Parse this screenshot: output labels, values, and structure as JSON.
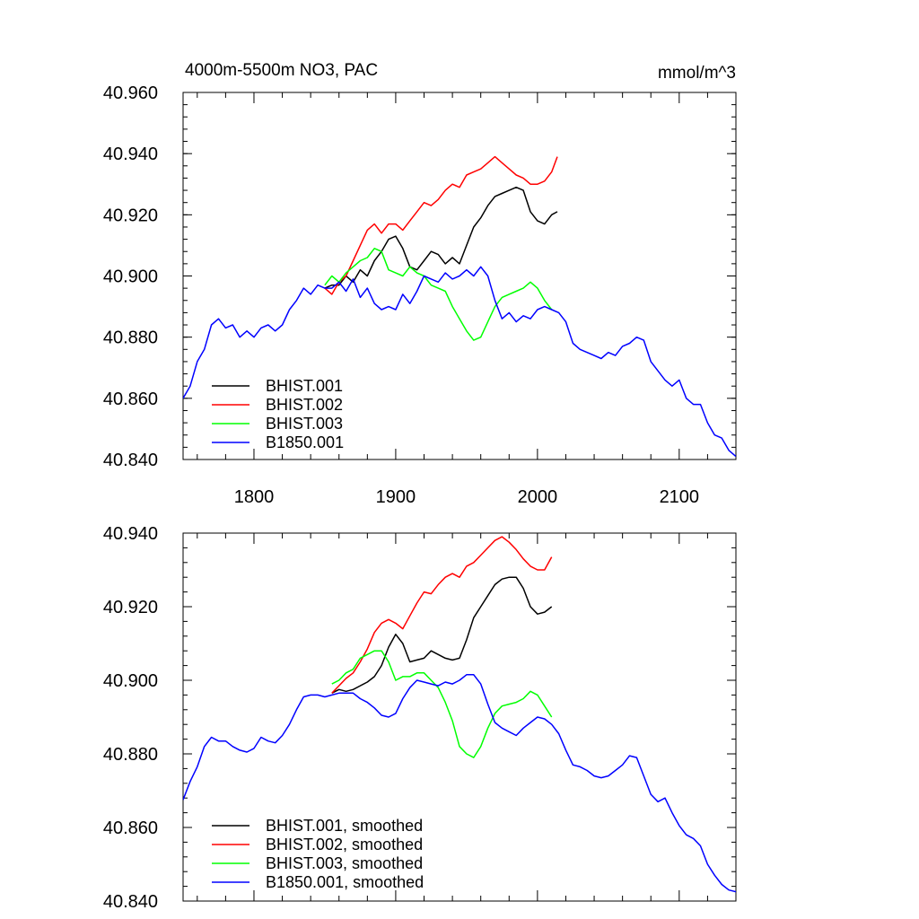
{
  "chart_data": [
    {
      "type": "line",
      "title": "4000m-5500m NO3, PAC",
      "units": "mmol/m^3",
      "xlim": [
        1750,
        2140
      ],
      "ylim": [
        0.84,
        0.96
      ],
      "y_offset": 40,
      "yticks": [
        "40.840",
        "40.860",
        "40.880",
        "40.900",
        "40.920",
        "40.940",
        "40.960"
      ],
      "xticks": [
        "1800",
        "1900",
        "2000",
        "2100"
      ],
      "legend_position": "bottom-left",
      "grid": false,
      "series": [
        {
          "name": "BHIST.001",
          "color": "#000000",
          "x": [
            1850,
            1855,
            1860,
            1865,
            1870,
            1875,
            1880,
            1885,
            1890,
            1895,
            1900,
            1905,
            1910,
            1915,
            1920,
            1925,
            1930,
            1935,
            1940,
            1945,
            1950,
            1955,
            1960,
            1965,
            1970,
            1975,
            1980,
            1985,
            1990,
            1995,
            2000,
            2005,
            2010,
            2014
          ],
          "y": [
            0.896,
            0.897,
            0.897,
            0.9,
            0.898,
            0.902,
            0.9,
            0.905,
            0.908,
            0.912,
            0.913,
            0.909,
            0.903,
            0.902,
            0.905,
            0.908,
            0.907,
            0.904,
            0.906,
            0.904,
            0.91,
            0.916,
            0.919,
            0.923,
            0.926,
            0.927,
            0.928,
            0.929,
            0.928,
            0.921,
            0.918,
            0.917,
            0.92,
            0.921
          ]
        },
        {
          "name": "BHIST.002",
          "color": "#ff0000",
          "x": [
            1850,
            1855,
            1860,
            1865,
            1870,
            1875,
            1880,
            1885,
            1890,
            1895,
            1900,
            1905,
            1910,
            1915,
            1920,
            1925,
            1930,
            1935,
            1940,
            1945,
            1950,
            1955,
            1960,
            1965,
            1970,
            1975,
            1980,
            1985,
            1990,
            1995,
            2000,
            2005,
            2010,
            2014
          ],
          "y": [
            0.896,
            0.894,
            0.898,
            0.9,
            0.905,
            0.91,
            0.915,
            0.917,
            0.914,
            0.917,
            0.917,
            0.915,
            0.918,
            0.921,
            0.924,
            0.923,
            0.925,
            0.928,
            0.93,
            0.929,
            0.933,
            0.934,
            0.935,
            0.937,
            0.939,
            0.937,
            0.935,
            0.933,
            0.932,
            0.93,
            0.93,
            0.931,
            0.934,
            0.939
          ]
        },
        {
          "name": "BHIST.003",
          "color": "#00ff00",
          "x": [
            1850,
            1855,
            1860,
            1865,
            1870,
            1875,
            1880,
            1885,
            1890,
            1895,
            1900,
            1905,
            1910,
            1915,
            1920,
            1925,
            1930,
            1935,
            1940,
            1945,
            1950,
            1955,
            1960,
            1965,
            1970,
            1975,
            1980,
            1985,
            1990,
            1995,
            2000,
            2005,
            2010
          ],
          "y": [
            0.897,
            0.9,
            0.898,
            0.901,
            0.903,
            0.905,
            0.906,
            0.909,
            0.908,
            0.902,
            0.901,
            0.9,
            0.903,
            0.901,
            0.9,
            0.897,
            0.896,
            0.895,
            0.89,
            0.886,
            0.882,
            0.879,
            0.88,
            0.885,
            0.89,
            0.893,
            0.894,
            0.895,
            0.896,
            0.898,
            0.896,
            0.892,
            0.889
          ]
        },
        {
          "name": "B1850.001",
          "color": "#0000ff",
          "x": [
            1750,
            1755,
            1760,
            1765,
            1770,
            1775,
            1780,
            1785,
            1790,
            1795,
            1800,
            1805,
            1810,
            1815,
            1820,
            1825,
            1830,
            1835,
            1840,
            1845,
            1850,
            1855,
            1860,
            1865,
            1870,
            1875,
            1880,
            1885,
            1890,
            1895,
            1900,
            1905,
            1910,
            1915,
            1920,
            1925,
            1930,
            1935,
            1940,
            1945,
            1950,
            1955,
            1960,
            1965,
            1970,
            1975,
            1980,
            1985,
            1990,
            1995,
            2000,
            2005,
            2010,
            2015,
            2020,
            2025,
            2030,
            2035,
            2040,
            2045,
            2050,
            2055,
            2060,
            2065,
            2070,
            2075,
            2080,
            2085,
            2090,
            2095,
            2100,
            2105,
            2110,
            2115,
            2120,
            2125,
            2130,
            2135,
            2140
          ],
          "y": [
            0.86,
            0.864,
            0.872,
            0.876,
            0.884,
            0.886,
            0.883,
            0.884,
            0.88,
            0.882,
            0.88,
            0.883,
            0.884,
            0.882,
            0.884,
            0.889,
            0.892,
            0.896,
            0.894,
            0.897,
            0.896,
            0.896,
            0.898,
            0.895,
            0.899,
            0.893,
            0.896,
            0.891,
            0.889,
            0.89,
            0.889,
            0.894,
            0.891,
            0.895,
            0.9,
            0.899,
            0.898,
            0.901,
            0.899,
            0.9,
            0.902,
            0.9,
            0.903,
            0.9,
            0.892,
            0.886,
            0.888,
            0.885,
            0.887,
            0.886,
            0.889,
            0.89,
            0.889,
            0.888,
            0.885,
            0.878,
            0.876,
            0.875,
            0.874,
            0.873,
            0.875,
            0.874,
            0.877,
            0.878,
            0.88,
            0.879,
            0.872,
            0.869,
            0.866,
            0.864,
            0.866,
            0.86,
            0.858,
            0.858,
            0.852,
            0.848,
            0.847,
            0.843,
            0.841
          ]
        }
      ]
    },
    {
      "type": "line",
      "xlim": [
        1750,
        2140
      ],
      "ylim": [
        0.84,
        0.94
      ],
      "y_offset": 40,
      "yticks": [
        "40.840",
        "40.860",
        "40.880",
        "40.900",
        "40.920",
        "40.940"
      ],
      "legend_position": "bottom-left",
      "grid": false,
      "series": [
        {
          "name": "BHIST.001, smoothed",
          "color": "#000000",
          "x": [
            1855,
            1860,
            1865,
            1870,
            1875,
            1880,
            1885,
            1890,
            1895,
            1900,
            1905,
            1910,
            1915,
            1920,
            1925,
            1930,
            1935,
            1940,
            1945,
            1950,
            1955,
            1960,
            1965,
            1970,
            1975,
            1980,
            1985,
            1990,
            1995,
            2000,
            2005,
            2010
          ],
          "y": [
            0.8965,
            0.8975,
            0.897,
            0.8975,
            0.8985,
            0.8995,
            0.901,
            0.904,
            0.909,
            0.9125,
            0.91,
            0.905,
            0.9055,
            0.906,
            0.908,
            0.907,
            0.906,
            0.9055,
            0.906,
            0.911,
            0.917,
            0.92,
            0.923,
            0.926,
            0.9275,
            0.928,
            0.928,
            0.925,
            0.92,
            0.918,
            0.9185,
            0.92
          ]
        },
        {
          "name": "BHIST.002, smoothed",
          "color": "#ff0000",
          "x": [
            1855,
            1860,
            1865,
            1870,
            1875,
            1880,
            1885,
            1890,
            1895,
            1900,
            1905,
            1910,
            1915,
            1920,
            1925,
            1930,
            1935,
            1940,
            1945,
            1950,
            1955,
            1960,
            1965,
            1970,
            1975,
            1980,
            1985,
            1990,
            1995,
            2000,
            2005,
            2010
          ],
          "y": [
            0.8965,
            0.8985,
            0.9005,
            0.902,
            0.905,
            0.9085,
            0.913,
            0.9155,
            0.9165,
            0.9155,
            0.914,
            0.9175,
            0.921,
            0.924,
            0.9235,
            0.926,
            0.928,
            0.929,
            0.928,
            0.931,
            0.932,
            0.934,
            0.936,
            0.938,
            0.939,
            0.9375,
            0.9355,
            0.933,
            0.931,
            0.93,
            0.93,
            0.9335
          ]
        },
        {
          "name": "BHIST.003, smoothed",
          "color": "#00ff00",
          "x": [
            1855,
            1860,
            1865,
            1870,
            1875,
            1880,
            1885,
            1890,
            1895,
            1900,
            1905,
            1910,
            1915,
            1920,
            1925,
            1930,
            1935,
            1940,
            1945,
            1950,
            1955,
            1960,
            1965,
            1970,
            1975,
            1980,
            1985,
            1990,
            1995,
            2000,
            2005,
            2010
          ],
          "y": [
            0.899,
            0.9,
            0.902,
            0.903,
            0.906,
            0.907,
            0.908,
            0.908,
            0.905,
            0.9,
            0.901,
            0.901,
            0.902,
            0.902,
            0.9,
            0.898,
            0.894,
            0.889,
            0.882,
            0.88,
            0.879,
            0.882,
            0.887,
            0.891,
            0.893,
            0.8935,
            0.894,
            0.895,
            0.897,
            0.896,
            0.893,
            0.89
          ]
        },
        {
          "name": "B1850.001, smoothed",
          "color": "#0000ff",
          "x": [
            1750,
            1755,
            1760,
            1765,
            1770,
            1775,
            1780,
            1785,
            1790,
            1795,
            1800,
            1805,
            1810,
            1815,
            1820,
            1825,
            1830,
            1835,
            1840,
            1845,
            1850,
            1855,
            1860,
            1865,
            1870,
            1875,
            1880,
            1885,
            1890,
            1895,
            1900,
            1905,
            1910,
            1915,
            1920,
            1925,
            1930,
            1935,
            1940,
            1945,
            1950,
            1955,
            1960,
            1965,
            1970,
            1975,
            1980,
            1985,
            1990,
            1995,
            2000,
            2005,
            2010,
            2015,
            2020,
            2025,
            2030,
            2035,
            2040,
            2045,
            2050,
            2055,
            2060,
            2065,
            2070,
            2075,
            2080,
            2085,
            2090,
            2095,
            2100,
            2105,
            2110,
            2115,
            2120,
            2125,
            2130,
            2135,
            2140
          ],
          "y": [
            0.8675,
            0.8725,
            0.8765,
            0.882,
            0.8845,
            0.8835,
            0.8835,
            0.882,
            0.881,
            0.8805,
            0.8815,
            0.8845,
            0.8835,
            0.883,
            0.885,
            0.888,
            0.892,
            0.8955,
            0.896,
            0.896,
            0.8955,
            0.896,
            0.8965,
            0.8965,
            0.8965,
            0.895,
            0.894,
            0.8925,
            0.8905,
            0.89,
            0.891,
            0.895,
            0.898,
            0.9,
            0.8995,
            0.899,
            0.8985,
            0.8995,
            0.899,
            0.9,
            0.9015,
            0.9015,
            0.899,
            0.8935,
            0.8885,
            0.887,
            0.886,
            0.885,
            0.887,
            0.8885,
            0.89,
            0.8895,
            0.888,
            0.8855,
            0.881,
            0.877,
            0.8765,
            0.8755,
            0.874,
            0.8735,
            0.874,
            0.8755,
            0.877,
            0.8795,
            0.879,
            0.874,
            0.869,
            0.867,
            0.868,
            0.864,
            0.8605,
            0.858,
            0.857,
            0.855,
            0.85,
            0.847,
            0.8445,
            0.843,
            0.8425
          ]
        }
      ]
    }
  ]
}
